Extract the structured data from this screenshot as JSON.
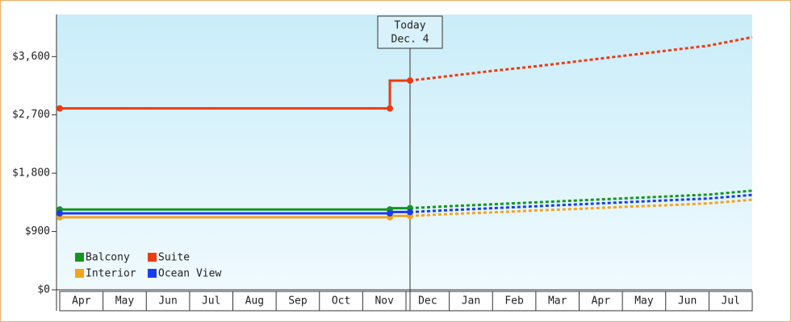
{
  "chart_data": {
    "type": "line",
    "categories": [
      "Apr",
      "May",
      "Jun",
      "Jul",
      "Aug",
      "Sep",
      "Oct",
      "Nov",
      "Dec",
      "Jan",
      "Feb",
      "Mar",
      "Apr",
      "May",
      "Jun",
      "Jul",
      null
    ],
    "series": [
      {
        "name": "Balcony",
        "color": "#14961e",
        "values": [
          1240,
          1240,
          1240,
          1240,
          1240,
          1240,
          1240,
          1240,
          1260,
          null,
          null,
          null,
          null,
          null,
          null,
          null,
          null
        ],
        "forecast": [
          null,
          null,
          null,
          null,
          null,
          null,
          null,
          null,
          1260,
          1290,
          1320,
          1350,
          1380,
          1410,
          1440,
          1470,
          1530
        ]
      },
      {
        "name": "Interior",
        "color": "#f5a31c",
        "values": [
          1120,
          1120,
          1120,
          1120,
          1120,
          1120,
          1120,
          1120,
          1140,
          null,
          null,
          null,
          null,
          null,
          null,
          null,
          null
        ],
        "forecast": [
          null,
          null,
          null,
          null,
          null,
          null,
          null,
          null,
          1140,
          1170,
          1195,
          1225,
          1250,
          1280,
          1305,
          1335,
          1390
        ]
      },
      {
        "name": "Suite",
        "color": "#ee3a12",
        "values": [
          2800,
          2800,
          2800,
          2800,
          2800,
          2800,
          2800,
          2800,
          3230,
          null,
          null,
          null,
          null,
          null,
          null,
          null,
          null
        ],
        "forecast": [
          null,
          null,
          null,
          null,
          null,
          null,
          null,
          null,
          3230,
          3300,
          3380,
          3450,
          3530,
          3610,
          3690,
          3770,
          3900
        ]
      },
      {
        "name": "Ocean View",
        "color": "#1a3cf0",
        "values": [
          1180,
          1180,
          1180,
          1180,
          1180,
          1180,
          1180,
          1180,
          1200,
          null,
          null,
          null,
          null,
          null,
          null,
          null,
          null
        ],
        "forecast": [
          null,
          null,
          null,
          null,
          null,
          null,
          null,
          null,
          1200,
          1230,
          1260,
          1290,
          1320,
          1350,
          1380,
          1410,
          1465
        ]
      }
    ],
    "annotation": [
      "Today",
      "Dec. 4"
    ],
    "ylim": [
      0,
      4250
    ],
    "yticks": [
      0,
      {
        "value": 900,
        "label": "$900"
      },
      {
        "value": 1800,
        "label": "$1,800"
      },
      {
        "value": 2700,
        "label": "$2,700"
      },
      {
        "value": 3600,
        "label": "$3,600"
      }
    ],
    "ytick_zero_label": "$0",
    "legend": "lower left"
  }
}
